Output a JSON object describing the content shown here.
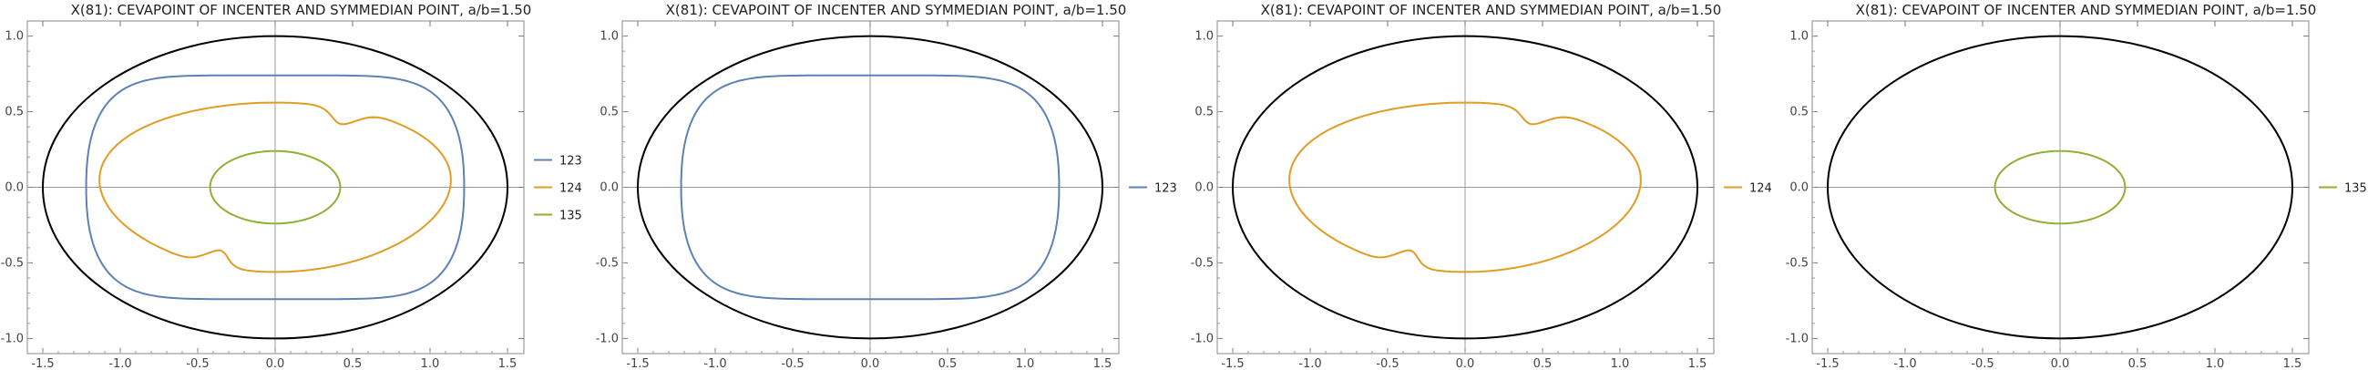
{
  "chart_data": [
    {
      "type": "line",
      "title": "X(81): CEVAPOINT OF INCENTER AND SYMMEDIAN POINT, a/b=1.50",
      "xlim": [
        -1.6,
        1.6
      ],
      "ylim": [
        -1.1,
        1.1
      ],
      "xticks": [
        "-1.5",
        "-1.0",
        "-0.5",
        "0.0",
        "0.5",
        "1.0",
        "1.5"
      ],
      "yticks": [
        "-1.0",
        "-0.5",
        "0.0",
        "0.5",
        "1.0"
      ],
      "grid": false,
      "legend": "right",
      "outer_ellipse": {
        "a": 1.5,
        "b": 1.0,
        "color": "#000000"
      },
      "series": [
        {
          "name": "123",
          "color": "#5E81B5",
          "shape": "superellipse",
          "a": 1.22,
          "b": 0.74
        },
        {
          "name": "124",
          "color": "#E19C24",
          "shape": "cusp-curve",
          "a": 1.13,
          "b": 0.56
        },
        {
          "name": "135",
          "color": "#8FB032",
          "shape": "ellipse",
          "a": 0.42,
          "b": 0.24
        }
      ]
    },
    {
      "type": "line",
      "title": "X(81): CEVAPOINT OF INCENTER AND SYMMEDIAN POINT, a/b=1.50",
      "xlim": [
        -1.6,
        1.6
      ],
      "ylim": [
        -1.1,
        1.1
      ],
      "xticks": [
        "-1.5",
        "-1.0",
        "-0.5",
        "0.0",
        "0.5",
        "1.0",
        "1.5"
      ],
      "yticks": [
        "-1.0",
        "-0.5",
        "0.0",
        "0.5",
        "1.0"
      ],
      "grid": false,
      "legend": "right",
      "outer_ellipse": {
        "a": 1.5,
        "b": 1.0,
        "color": "#000000"
      },
      "series": [
        {
          "name": "123",
          "color": "#5E81B5",
          "shape": "superellipse",
          "a": 1.22,
          "b": 0.74
        }
      ]
    },
    {
      "type": "line",
      "title": "X(81): CEVAPOINT OF INCENTER AND SYMMEDIAN POINT, a/b=1.50",
      "xlim": [
        -1.6,
        1.6
      ],
      "ylim": [
        -1.1,
        1.1
      ],
      "xticks": [
        "-1.5",
        "-1.0",
        "-0.5",
        "0.0",
        "0.5",
        "1.0",
        "1.5"
      ],
      "yticks": [
        "-1.0",
        "-0.5",
        "0.0",
        "0.5",
        "1.0"
      ],
      "grid": false,
      "legend": "right",
      "outer_ellipse": {
        "a": 1.5,
        "b": 1.0,
        "color": "#000000"
      },
      "series": [
        {
          "name": "124",
          "color": "#E19C24",
          "shape": "cusp-curve",
          "a": 1.13,
          "b": 0.56
        }
      ]
    },
    {
      "type": "line",
      "title": "X(81): CEVAPOINT OF INCENTER AND SYMMEDIAN POINT, a/b=1.50",
      "xlim": [
        -1.6,
        1.6
      ],
      "ylim": [
        -1.1,
        1.1
      ],
      "xticks": [
        "-1.5",
        "-1.0",
        "-0.5",
        "0.0",
        "0.5",
        "1.0",
        "1.5"
      ],
      "yticks": [
        "-1.0",
        "-0.5",
        "0.0",
        "0.5",
        "1.0"
      ],
      "grid": false,
      "legend": "right",
      "outer_ellipse": {
        "a": 1.5,
        "b": 1.0,
        "color": "#000000"
      },
      "series": [
        {
          "name": "135",
          "color": "#8FB032",
          "shape": "ellipse",
          "a": 0.42,
          "b": 0.24
        }
      ]
    }
  ]
}
